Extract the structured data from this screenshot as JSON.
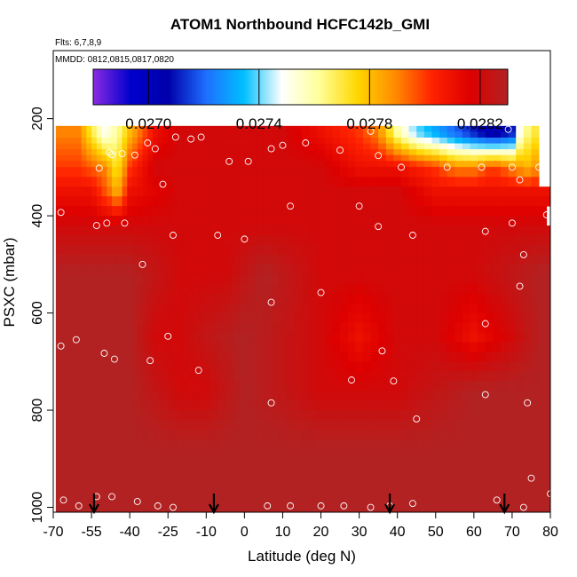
{
  "chart_data": {
    "type": "heatmap",
    "title": "ATOM1 Northbound HCFC142b_GMI",
    "flights_label": "Flts: 6,7,8,9",
    "dates_label": "MMDD: 0812,0815,0817,0820",
    "xlabel": "Latitude (deg N)",
    "ylabel": "PSXC (mbar)",
    "xlim": [
      -70,
      80
    ],
    "ylim": [
      1010,
      60
    ],
    "x_ticks": [
      -70,
      -55,
      -40,
      -25,
      -10,
      0,
      10,
      20,
      30,
      40,
      50,
      60,
      70,
      80
    ],
    "x_tick_labels": [
      "-70",
      "-55",
      "-40",
      "-25",
      "-10",
      "0",
      "10",
      "20",
      "30",
      "40",
      "50",
      "60",
      "70",
      "80"
    ],
    "y_ticks": [
      200,
      400,
      600,
      800,
      1000
    ],
    "y_tick_labels": [
      "200",
      "400",
      "600",
      "800",
      "1000"
    ],
    "colorbar": {
      "range": [
        0.0268,
        0.0283
      ],
      "ticks": [
        0.027,
        0.0274,
        0.0278,
        0.0282
      ],
      "tick_labels": [
        "0.0270",
        "0.0274",
        "0.0278",
        "0.0282"
      ],
      "colors": [
        "#8a2be2",
        "#0000cd",
        "#0000aa",
        "#1e6fff",
        "#00bfff",
        "#ffffff",
        "#ffff99",
        "#ffd700",
        "#ff8c00",
        "#ff2200",
        "#dd0000",
        "#b22222"
      ]
    },
    "grid": false,
    "legend": "colorbar-top",
    "heatmap_rows": [
      {
        "p": 230,
        "x": [
          -67.5,
          -60,
          -55,
          -50,
          -45,
          -40,
          -30,
          -20,
          -10,
          0,
          10,
          20,
          30,
          35,
          40,
          45,
          50,
          55,
          60,
          65,
          70,
          72,
          75
        ],
        "v": [
          0.0279,
          0.0279,
          0.0277,
          0.0275,
          0.0276,
          0.0278,
          0.0281,
          0.0282,
          0.0282,
          0.0282,
          0.0282,
          0.0281,
          0.028,
          0.0279,
          0.0276,
          0.0274,
          0.0273,
          0.0272,
          0.0271,
          0.027,
          0.0271,
          0.0275,
          0.0277
        ]
      },
      {
        "p": 300,
        "x": [
          -67.5,
          -60,
          -50,
          -45,
          -40,
          -30,
          -20,
          -10,
          0,
          10,
          20,
          30,
          40,
          50,
          55,
          60,
          65,
          70,
          75,
          78
        ],
        "v": [
          0.028,
          0.028,
          0.0279,
          0.0277,
          0.028,
          0.0282,
          0.0282,
          0.0282,
          0.0282,
          0.0282,
          0.0282,
          0.0281,
          0.0281,
          0.028,
          0.0279,
          0.0279,
          0.028,
          0.0279,
          0.0278,
          0.028
        ]
      },
      {
        "p": 350,
        "x": [
          -67.5,
          -55,
          -47,
          -45,
          -40,
          -20,
          0,
          20,
          40,
          50,
          60,
          70,
          78
        ],
        "v": [
          0.0281,
          0.0281,
          0.0279,
          0.0278,
          0.0281,
          0.0282,
          0.0282,
          0.0282,
          0.0282,
          0.0281,
          0.0281,
          0.0281,
          0.0281
        ]
      },
      {
        "p": 420,
        "x": [
          -67.5,
          -40,
          -20,
          0,
          20,
          40,
          60,
          78
        ],
        "v": [
          0.0282,
          0.0282,
          0.0282,
          0.0282,
          0.0282,
          0.0282,
          0.0282,
          0.0282
        ]
      },
      {
        "p": 520,
        "x": [
          -67.5,
          -40,
          -20,
          -5,
          5,
          20,
          30,
          40,
          60,
          78
        ],
        "v": [
          0.0283,
          0.0283,
          0.0282,
          0.0282,
          0.0283,
          0.0282,
          0.0282,
          0.0282,
          0.0282,
          0.0283
        ]
      },
      {
        "p": 650,
        "x": [
          -67.5,
          -40,
          -30,
          -20,
          0,
          20,
          30,
          40,
          50,
          60,
          70,
          78
        ],
        "v": [
          0.0283,
          0.0283,
          0.0282,
          0.0282,
          0.0283,
          0.0282,
          0.0281,
          0.0282,
          0.0282,
          0.0281,
          0.0282,
          0.0283
        ]
      },
      {
        "p": 760,
        "x": [
          -67.5,
          -40,
          -20,
          -10,
          0,
          20,
          40,
          60,
          78
        ],
        "v": [
          0.0283,
          0.0283,
          0.0282,
          0.0282,
          0.0283,
          0.0282,
          0.0282,
          0.0283,
          0.0283
        ]
      },
      {
        "p": 880,
        "x": [
          -67.5,
          -20,
          0,
          20,
          40,
          60,
          78
        ],
        "v": [
          0.0283,
          0.0283,
          0.0283,
          0.0283,
          0.0283,
          0.0283,
          0.0283
        ]
      }
    ],
    "flight_markers_x": [
      -54,
      -8,
      38,
      68
    ],
    "sample_points": [
      {
        "x": -48,
        "y": 270
      },
      {
        "x": -43,
        "y": 272
      },
      {
        "x": -38,
        "y": 275
      },
      {
        "x": -33,
        "y": 250
      },
      {
        "x": -30,
        "y": 262
      },
      {
        "x": -27,
        "y": 335
      },
      {
        "x": -22,
        "y": 238
      },
      {
        "x": -16,
        "y": 242
      },
      {
        "x": -12,
        "y": 238
      },
      {
        "x": -4,
        "y": 288
      },
      {
        "x": 1,
        "y": 288
      },
      {
        "x": 7,
        "y": 262
      },
      {
        "x": 10,
        "y": 255
      },
      {
        "x": 16,
        "y": 250
      },
      {
        "x": 25,
        "y": 265
      },
      {
        "x": 33,
        "y": 226
      },
      {
        "x": 35,
        "y": 276
      },
      {
        "x": 41,
        "y": 300
      },
      {
        "x": 53,
        "y": 300
      },
      {
        "x": 62,
        "y": 300
      },
      {
        "x": 69,
        "y": 222
      },
      {
        "x": 70,
        "y": 300
      },
      {
        "x": 72,
        "y": 326
      },
      {
        "x": 77,
        "y": 300
      },
      {
        "x": -52,
        "y": 302
      },
      {
        "x": -67,
        "y": 393
      },
      {
        "x": -53,
        "y": 420
      },
      {
        "x": -49,
        "y": 415
      },
      {
        "x": -42,
        "y": 415
      },
      {
        "x": -35,
        "y": 500
      },
      {
        "x": -23,
        "y": 440
      },
      {
        "x": -7,
        "y": 440
      },
      {
        "x": 0,
        "y": 448
      },
      {
        "x": 12,
        "y": 380
      },
      {
        "x": 30,
        "y": 380
      },
      {
        "x": 35,
        "y": 422
      },
      {
        "x": 44,
        "y": 440
      },
      {
        "x": 63,
        "y": 432
      },
      {
        "x": 70,
        "y": 415
      },
      {
        "x": 73,
        "y": 480
      },
      {
        "x": 79,
        "y": 398
      },
      {
        "x": 72,
        "y": 545
      },
      {
        "x": 20,
        "y": 558
      },
      {
        "x": 7,
        "y": 578
      },
      {
        "x": -67,
        "y": 668
      },
      {
        "x": -61,
        "y": 655
      },
      {
        "x": -50,
        "y": 683
      },
      {
        "x": -46,
        "y": 695
      },
      {
        "x": -32,
        "y": 698
      },
      {
        "x": -25,
        "y": 648
      },
      {
        "x": -13,
        "y": 718
      },
      {
        "x": 7,
        "y": 785
      },
      {
        "x": 28,
        "y": 738
      },
      {
        "x": 36,
        "y": 678
      },
      {
        "x": 39,
        "y": 740
      },
      {
        "x": 45,
        "y": 818
      },
      {
        "x": 63,
        "y": 622
      },
      {
        "x": 63,
        "y": 768
      },
      {
        "x": 74,
        "y": 785
      },
      {
        "x": 75,
        "y": 940
      },
      {
        "x": -66,
        "y": 985
      },
      {
        "x": -60,
        "y": 997
      },
      {
        "x": -53,
        "y": 978
      },
      {
        "x": -47,
        "y": 978
      },
      {
        "x": -37,
        "y": 988
      },
      {
        "x": -29,
        "y": 997
      },
      {
        "x": -23,
        "y": 1000
      },
      {
        "x": 6,
        "y": 997
      },
      {
        "x": 12,
        "y": 997
      },
      {
        "x": 20,
        "y": 997
      },
      {
        "x": 26,
        "y": 997
      },
      {
        "x": 33,
        "y": 1000
      },
      {
        "x": 38,
        "y": 997
      },
      {
        "x": 44,
        "y": 992
      },
      {
        "x": 66,
        "y": 985
      },
      {
        "x": 73,
        "y": 1000
      },
      {
        "x": 80,
        "y": 972
      },
      {
        "x": -47,
        "y": 274
      }
    ]
  }
}
